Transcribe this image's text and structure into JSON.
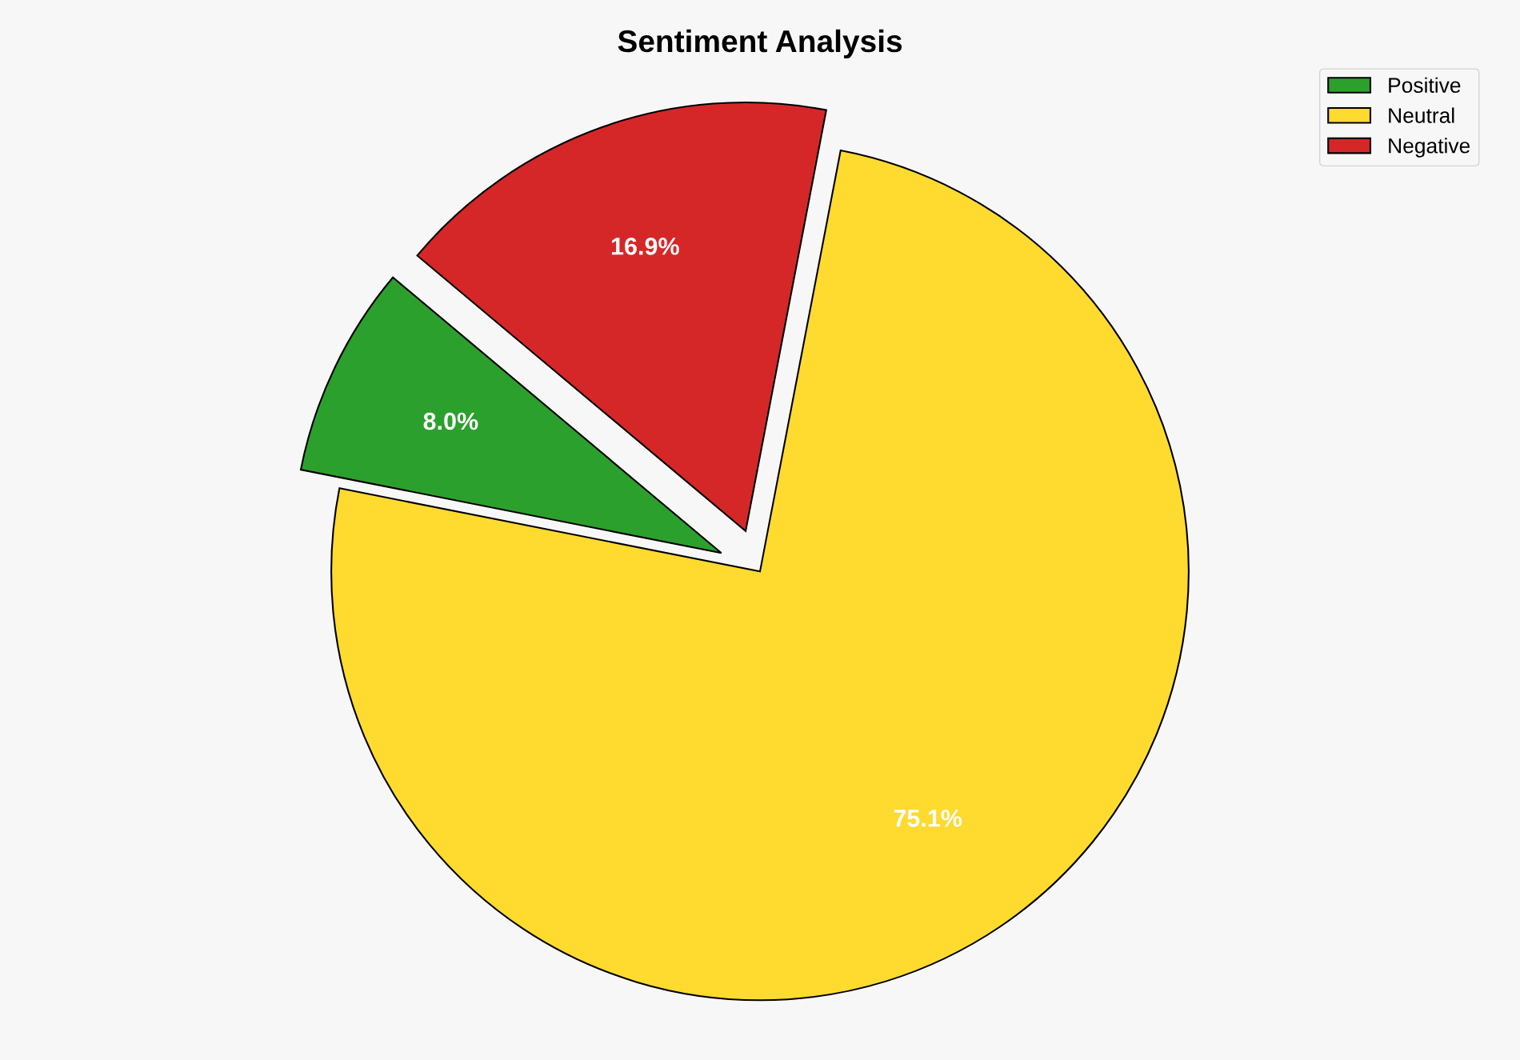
{
  "chart_data": {
    "type": "pie",
    "title": "Sentiment Analysis",
    "categories": [
      "Positive",
      "Neutral",
      "Negative"
    ],
    "values": [
      8.0,
      75.1,
      16.9
    ],
    "colors": [
      "#2ca02c",
      "#ffda2f",
      "#d62728"
    ],
    "value_labels": [
      "8.0%",
      "75.1%",
      "16.9%"
    ],
    "legend": "top right"
  }
}
